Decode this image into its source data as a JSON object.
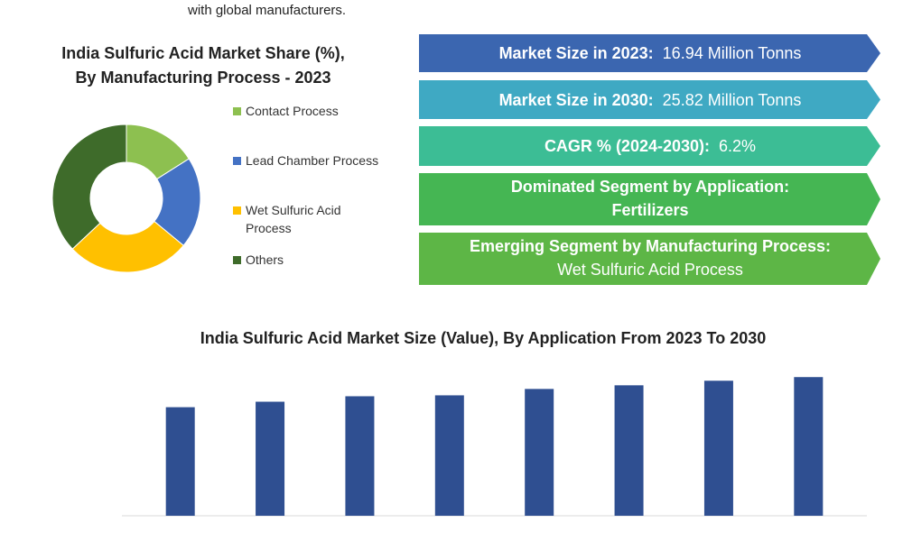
{
  "intro_text": "with global manufacturers.",
  "banners": [
    {
      "label": "Market Size in 2023:",
      "value": "16.94 Million Tonns",
      "color": "#3b66b0"
    },
    {
      "label": "Market Size in 2030:",
      "value": "25.82 Million Tonns",
      "color": "#3fa9c3"
    },
    {
      "label": "CAGR % (2024-2030):",
      "value": "6.2%",
      "color": "#3cbd95"
    },
    {
      "label": "Dominated Segment by Application:",
      "value": "Fertilizers",
      "color": "#45b653"
    },
    {
      "label": "Emerging Segment by Manufacturing Process:",
      "value": "Wet Sulfuric Acid Process",
      "color": "#5db646"
    }
  ],
  "chart_data": [
    {
      "type": "donut",
      "title": "India Sulfuric Acid Market Share (%), By Manufacturing Process - 2023",
      "categories": [
        "Contact Process",
        "Lead Chamber Process",
        "Wet Sulfuric Acid Process",
        "Others"
      ],
      "values": [
        16,
        20,
        27,
        37
      ],
      "colors": [
        "#8dc050",
        "#4472c4",
        "#ffc000",
        "#3e6b2a"
      ]
    },
    {
      "type": "bar",
      "title": "India Sulfuric Acid Market Size (Value), By Application From 2023 To 2030",
      "categories": [
        null,
        null,
        null,
        null,
        null,
        null,
        null,
        null
      ],
      "values": [
        119,
        125,
        131,
        132,
        139,
        143,
        148,
        152
      ],
      "color": "#2f4f91",
      "ylim": [
        0,
        170
      ]
    }
  ]
}
